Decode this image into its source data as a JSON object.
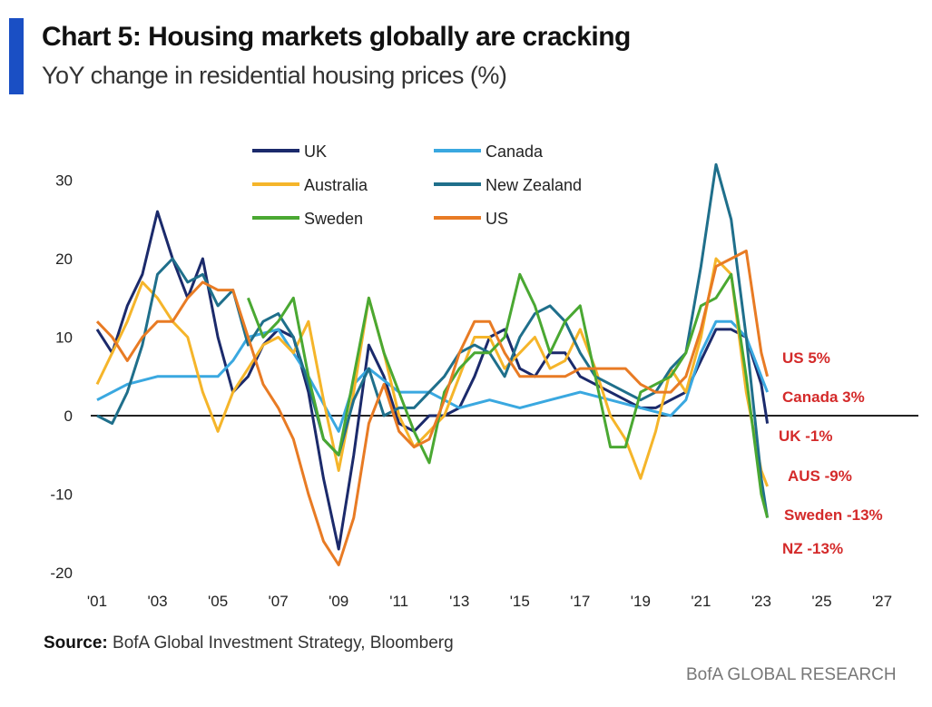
{
  "header": {
    "title": "Chart 5: Housing markets globally are cracking",
    "subtitle": "YoY change in residential housing prices (%)"
  },
  "footer": {
    "source_label": "Source:",
    "source_text": "BofA Global Investment Strategy, Bloomberg",
    "brand": "BofA GLOBAL RESEARCH"
  },
  "chart_data": {
    "type": "line",
    "title": "Chart 5: Housing markets globally are cracking",
    "ylabel": "YoY change in residential housing prices (%)",
    "xlabel": "",
    "xlim": [
      2001,
      2027
    ],
    "ylim": [
      -20,
      32
    ],
    "x_ticks": [
      {
        "v": 2001,
        "l": "'01"
      },
      {
        "v": 2003,
        "l": "'03"
      },
      {
        "v": 2005,
        "l": "'05"
      },
      {
        "v": 2007,
        "l": "'07"
      },
      {
        "v": 2009,
        "l": "'09"
      },
      {
        "v": 2011,
        "l": "'11"
      },
      {
        "v": 2013,
        "l": "'13"
      },
      {
        "v": 2015,
        "l": "'15"
      },
      {
        "v": 2017,
        "l": "'17"
      },
      {
        "v": 2019,
        "l": "'19"
      },
      {
        "v": 2021,
        "l": "'21"
      },
      {
        "v": 2023,
        "l": "'23"
      },
      {
        "v": 2025,
        "l": "'25"
      },
      {
        "v": 2027,
        "l": "'27"
      }
    ],
    "y_ticks": [
      {
        "v": 30,
        "l": "30"
      },
      {
        "v": 20,
        "l": "20"
      },
      {
        "v": 10,
        "l": "10"
      },
      {
        "v": 0,
        "l": "0"
      },
      {
        "v": -10,
        "l": "-10"
      },
      {
        "v": -20,
        "l": "-20"
      }
    ],
    "legend_position": "top",
    "series": [
      {
        "name": "UK",
        "color": "#1b2a6b",
        "points": [
          [
            2001,
            11
          ],
          [
            2001.5,
            8
          ],
          [
            2002,
            14
          ],
          [
            2002.5,
            18
          ],
          [
            2003,
            26
          ],
          [
            2003.5,
            20
          ],
          [
            2004,
            15
          ],
          [
            2004.5,
            20
          ],
          [
            2005,
            10
          ],
          [
            2005.5,
            3
          ],
          [
            2006,
            5
          ],
          [
            2006.5,
            9
          ],
          [
            2007,
            11
          ],
          [
            2007.5,
            10
          ],
          [
            2008,
            3
          ],
          [
            2008.5,
            -8
          ],
          [
            2009,
            -17
          ],
          [
            2009.5,
            -5
          ],
          [
            2010,
            9
          ],
          [
            2010.5,
            5
          ],
          [
            2011,
            -1
          ],
          [
            2011.5,
            -2
          ],
          [
            2012,
            0
          ],
          [
            2012.5,
            0
          ],
          [
            2013,
            1
          ],
          [
            2013.5,
            5
          ],
          [
            2014,
            10
          ],
          [
            2014.5,
            11
          ],
          [
            2015,
            6
          ],
          [
            2015.5,
            5
          ],
          [
            2016,
            8
          ],
          [
            2016.5,
            8
          ],
          [
            2017,
            5
          ],
          [
            2017.5,
            4
          ],
          [
            2018,
            3
          ],
          [
            2018.5,
            2
          ],
          [
            2019,
            1
          ],
          [
            2019.5,
            1
          ],
          [
            2020,
            2
          ],
          [
            2020.5,
            3
          ],
          [
            2021,
            7
          ],
          [
            2021.5,
            11
          ],
          [
            2022,
            11
          ],
          [
            2022.5,
            10
          ],
          [
            2023,
            4
          ],
          [
            2023.2,
            -1
          ]
        ]
      },
      {
        "name": "Canada",
        "color": "#3aa8e0",
        "points": [
          [
            2001,
            2
          ],
          [
            2002,
            4
          ],
          [
            2003,
            5
          ],
          [
            2004,
            5
          ],
          [
            2005,
            5
          ],
          [
            2005.5,
            7
          ],
          [
            2006,
            10
          ],
          [
            2007,
            11
          ],
          [
            2008,
            5
          ],
          [
            2009,
            -2
          ],
          [
            2009.5,
            4
          ],
          [
            2010,
            6
          ],
          [
            2011,
            3
          ],
          [
            2012,
            3
          ],
          [
            2013,
            1
          ],
          [
            2014,
            2
          ],
          [
            2015,
            1
          ],
          [
            2016,
            2
          ],
          [
            2017,
            3
          ],
          [
            2018,
            2
          ],
          [
            2019,
            1
          ],
          [
            2020,
            0
          ],
          [
            2020.5,
            2
          ],
          [
            2021,
            8
          ],
          [
            2021.5,
            12
          ],
          [
            2022,
            12
          ],
          [
            2022.5,
            10
          ],
          [
            2023,
            5
          ],
          [
            2023.2,
            3
          ]
        ]
      },
      {
        "name": "Australia",
        "color": "#f5b52a",
        "points": [
          [
            2001,
            4
          ],
          [
            2002,
            12
          ],
          [
            2002.5,
            17
          ],
          [
            2003,
            15
          ],
          [
            2003.5,
            12
          ],
          [
            2004,
            10
          ],
          [
            2004.5,
            3
          ],
          [
            2005,
            -2
          ],
          [
            2005.5,
            3
          ],
          [
            2006,
            6
          ],
          [
            2006.5,
            9
          ],
          [
            2007,
            10
          ],
          [
            2007.5,
            8
          ],
          [
            2008,
            12
          ],
          [
            2008.5,
            2
          ],
          [
            2009,
            -7
          ],
          [
            2009.5,
            3
          ],
          [
            2010,
            15
          ],
          [
            2010.5,
            8
          ],
          [
            2011,
            0
          ],
          [
            2011.5,
            -4
          ],
          [
            2012,
            -2
          ],
          [
            2012.5,
            0
          ],
          [
            2013,
            5
          ],
          [
            2013.5,
            10
          ],
          [
            2014,
            10
          ],
          [
            2014.5,
            6
          ],
          [
            2015,
            8
          ],
          [
            2015.5,
            10
          ],
          [
            2016,
            6
          ],
          [
            2016.5,
            7
          ],
          [
            2017,
            11
          ],
          [
            2017.5,
            6
          ],
          [
            2018,
            0
          ],
          [
            2018.5,
            -3
          ],
          [
            2019,
            -8
          ],
          [
            2019.5,
            -2
          ],
          [
            2020,
            6
          ],
          [
            2020.5,
            3
          ],
          [
            2021,
            10
          ],
          [
            2021.5,
            20
          ],
          [
            2022,
            18
          ],
          [
            2022.5,
            3
          ],
          [
            2023,
            -7
          ],
          [
            2023.2,
            -9
          ]
        ]
      },
      {
        "name": "New Zealand",
        "color": "#1f6f8b",
        "points": [
          [
            2001,
            0
          ],
          [
            2001.5,
            -1
          ],
          [
            2002,
            3
          ],
          [
            2002.5,
            9
          ],
          [
            2003,
            18
          ],
          [
            2003.5,
            20
          ],
          [
            2004,
            17
          ],
          [
            2004.5,
            18
          ],
          [
            2005,
            14
          ],
          [
            2005.5,
            16
          ],
          [
            2006,
            9
          ],
          [
            2006.5,
            12
          ],
          [
            2007,
            13
          ],
          [
            2007.5,
            10
          ],
          [
            2008,
            4
          ],
          [
            2008.5,
            -3
          ],
          [
            2009,
            -5
          ],
          [
            2009.5,
            2
          ],
          [
            2010,
            6
          ],
          [
            2010.5,
            0
          ],
          [
            2011,
            1
          ],
          [
            2011.5,
            1
          ],
          [
            2012,
            3
          ],
          [
            2012.5,
            5
          ],
          [
            2013,
            8
          ],
          [
            2013.5,
            9
          ],
          [
            2014,
            8
          ],
          [
            2014.5,
            5
          ],
          [
            2015,
            10
          ],
          [
            2015.5,
            13
          ],
          [
            2016,
            14
          ],
          [
            2016.5,
            12
          ],
          [
            2017,
            8
          ],
          [
            2017.5,
            5
          ],
          [
            2018,
            4
          ],
          [
            2018.5,
            3
          ],
          [
            2019,
            2
          ],
          [
            2019.5,
            3
          ],
          [
            2020,
            6
          ],
          [
            2020.5,
            8
          ],
          [
            2021,
            19
          ],
          [
            2021.5,
            32
          ],
          [
            2022,
            25
          ],
          [
            2022.5,
            10
          ],
          [
            2023,
            -8
          ],
          [
            2023.2,
            -13
          ]
        ]
      },
      {
        "name": "Sweden",
        "color": "#4aa832",
        "points": [
          [
            2006,
            15
          ],
          [
            2006.5,
            10
          ],
          [
            2007,
            12
          ],
          [
            2007.5,
            15
          ],
          [
            2008,
            5
          ],
          [
            2008.5,
            -3
          ],
          [
            2009,
            -5
          ],
          [
            2009.5,
            5
          ],
          [
            2010,
            15
          ],
          [
            2010.5,
            8
          ],
          [
            2011,
            3
          ],
          [
            2011.5,
            -2
          ],
          [
            2012,
            -6
          ],
          [
            2012.5,
            3
          ],
          [
            2013,
            6
          ],
          [
            2013.5,
            8
          ],
          [
            2014,
            8
          ],
          [
            2014.5,
            10
          ],
          [
            2015,
            18
          ],
          [
            2015.5,
            14
          ],
          [
            2016,
            8
          ],
          [
            2016.5,
            12
          ],
          [
            2017,
            14
          ],
          [
            2017.5,
            5
          ],
          [
            2018,
            -4
          ],
          [
            2018.5,
            -4
          ],
          [
            2019,
            3
          ],
          [
            2019.5,
            4
          ],
          [
            2020,
            5
          ],
          [
            2020.5,
            8
          ],
          [
            2021,
            14
          ],
          [
            2021.5,
            15
          ],
          [
            2022,
            18
          ],
          [
            2022.5,
            5
          ],
          [
            2023,
            -10
          ],
          [
            2023.2,
            -13
          ]
        ]
      },
      {
        "name": "US",
        "color": "#e87b24",
        "points": [
          [
            2001,
            12
          ],
          [
            2001.5,
            10
          ],
          [
            2002,
            7
          ],
          [
            2002.5,
            10
          ],
          [
            2003,
            12
          ],
          [
            2003.5,
            12
          ],
          [
            2004,
            15
          ],
          [
            2004.5,
            17
          ],
          [
            2005,
            16
          ],
          [
            2005.5,
            16
          ],
          [
            2006,
            10
          ],
          [
            2006.5,
            4
          ],
          [
            2007,
            1
          ],
          [
            2007.5,
            -3
          ],
          [
            2008,
            -10
          ],
          [
            2008.5,
            -16
          ],
          [
            2009,
            -19
          ],
          [
            2009.5,
            -13
          ],
          [
            2010,
            -1
          ],
          [
            2010.5,
            4
          ],
          [
            2011,
            -2
          ],
          [
            2011.5,
            -4
          ],
          [
            2012,
            -3
          ],
          [
            2012.5,
            2
          ],
          [
            2013,
            8
          ],
          [
            2013.5,
            12
          ],
          [
            2014,
            12
          ],
          [
            2014.5,
            8
          ],
          [
            2015,
            5
          ],
          [
            2015.5,
            5
          ],
          [
            2016,
            5
          ],
          [
            2016.5,
            5
          ],
          [
            2017,
            6
          ],
          [
            2017.5,
            6
          ],
          [
            2018,
            6
          ],
          [
            2018.5,
            6
          ],
          [
            2019,
            4
          ],
          [
            2019.5,
            3
          ],
          [
            2020,
            3
          ],
          [
            2020.5,
            5
          ],
          [
            2021,
            11
          ],
          [
            2021.5,
            19
          ],
          [
            2022,
            20
          ],
          [
            2022.5,
            21
          ],
          [
            2023,
            8
          ],
          [
            2023.2,
            5
          ]
        ]
      }
    ],
    "annotations": [
      {
        "text": "US 5%",
        "value": 5
      },
      {
        "text": "Canada 3%",
        "value": 3
      },
      {
        "text": "UK -1%",
        "value": -1
      },
      {
        "text": "AUS -9%",
        "value": -9
      },
      {
        "text": "Sweden -13%",
        "value": -13
      },
      {
        "text": "NZ -13%",
        "value": -13
      }
    ],
    "annotation_color": "#d42a2a"
  }
}
